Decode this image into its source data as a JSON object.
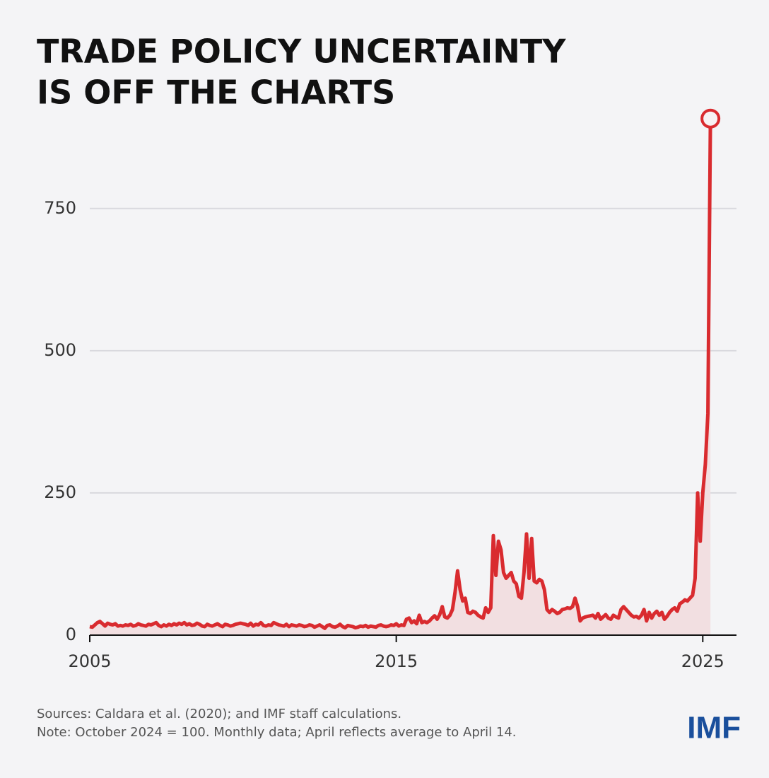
{
  "chart_data": {
    "type": "line",
    "title": [
      "TRADE POLICY UNCERTAINTY",
      "IS OFF THE CHARTS"
    ],
    "sources": "Sources: Caldara et al. (2020); and IMF staff calculations.",
    "note": "Note: October 2024 = 100. Monthly data; April reflects average to April 14.",
    "logo": "IMF",
    "color": "#d92b2f",
    "area_color": "#f2dfe1",
    "grid": true,
    "xlim": [
      2005,
      2026.1
    ],
    "xticks": [
      2005,
      2015,
      2025
    ],
    "ylim": [
      0,
      930
    ],
    "yticks": [
      0,
      250,
      500,
      750
    ],
    "x": [
      2005,
      2005.083,
      2005.167,
      2005.25,
      2005.333,
      2005.417,
      2005.5,
      2005.583,
      2005.667,
      2005.75,
      2005.833,
      2005.917,
      2006,
      2006.083,
      2006.167,
      2006.25,
      2006.333,
      2006.417,
      2006.5,
      2006.583,
      2006.667,
      2006.75,
      2006.833,
      2006.917,
      2007,
      2007.083,
      2007.167,
      2007.25,
      2007.333,
      2007.417,
      2007.5,
      2007.583,
      2007.667,
      2007.75,
      2007.833,
      2007.917,
      2008,
      2008.083,
      2008.167,
      2008.25,
      2008.333,
      2008.417,
      2008.5,
      2008.583,
      2008.667,
      2008.75,
      2008.833,
      2008.917,
      2009,
      2009.083,
      2009.167,
      2009.25,
      2009.333,
      2009.417,
      2009.5,
      2009.583,
      2009.667,
      2009.75,
      2009.833,
      2009.917,
      2010,
      2010.083,
      2010.167,
      2010.25,
      2010.333,
      2010.417,
      2010.5,
      2010.583,
      2010.667,
      2010.75,
      2010.833,
      2010.917,
      2011,
      2011.083,
      2011.167,
      2011.25,
      2011.333,
      2011.417,
      2011.5,
      2011.583,
      2011.667,
      2011.75,
      2011.833,
      2011.917,
      2012,
      2012.083,
      2012.167,
      2012.25,
      2012.333,
      2012.417,
      2012.5,
      2012.583,
      2012.667,
      2012.75,
      2012.833,
      2012.917,
      2013,
      2013.083,
      2013.167,
      2013.25,
      2013.333,
      2013.417,
      2013.5,
      2013.583,
      2013.667,
      2013.75,
      2013.833,
      2013.917,
      2014,
      2014.083,
      2014.167,
      2014.25,
      2014.333,
      2014.417,
      2014.5,
      2014.583,
      2014.667,
      2014.75,
      2014.833,
      2014.917,
      2015,
      2015.083,
      2015.167,
      2015.25,
      2015.333,
      2015.417,
      2015.5,
      2015.583,
      2015.667,
      2015.75,
      2015.833,
      2015.917,
      2016,
      2016.083,
      2016.167,
      2016.25,
      2016.333,
      2016.417,
      2016.5,
      2016.583,
      2016.667,
      2016.75,
      2016.833,
      2016.917,
      2017,
      2017.083,
      2017.167,
      2017.25,
      2017.333,
      2017.417,
      2017.5,
      2017.583,
      2017.667,
      2017.75,
      2017.833,
      2017.917,
      2018,
      2018.083,
      2018.167,
      2018.25,
      2018.333,
      2018.417,
      2018.5,
      2018.583,
      2018.667,
      2018.75,
      2018.833,
      2018.917,
      2019,
      2019.083,
      2019.167,
      2019.25,
      2019.333,
      2019.417,
      2019.5,
      2019.583,
      2019.667,
      2019.75,
      2019.833,
      2019.917,
      2020,
      2020.083,
      2020.167,
      2020.25,
      2020.333,
      2020.417,
      2020.5,
      2020.583,
      2020.667,
      2020.75,
      2020.833,
      2020.917,
      2021,
      2021.083,
      2021.167,
      2021.25,
      2021.333,
      2021.417,
      2021.5,
      2021.583,
      2021.667,
      2021.75,
      2021.833,
      2021.917,
      2022,
      2022.083,
      2022.167,
      2022.25,
      2022.333,
      2022.417,
      2022.5,
      2022.583,
      2022.667,
      2022.75,
      2022.833,
      2022.917,
      2023,
      2023.083,
      2023.167,
      2023.25,
      2023.333,
      2023.417,
      2023.5,
      2023.583,
      2023.667,
      2023.75,
      2023.833,
      2023.917,
      2024,
      2024.083,
      2024.167,
      2024.25,
      2024.333,
      2024.417,
      2024.5,
      2024.583,
      2024.667,
      2024.75,
      2024.833,
      2024.917,
      2025,
      2025.083,
      2025.167,
      2025.25
    ],
    "values": [
      15,
      14,
      18,
      22,
      24,
      20,
      16,
      21,
      19,
      18,
      20,
      16,
      17,
      16,
      18,
      17,
      19,
      16,
      17,
      20,
      18,
      17,
      16,
      19,
      18,
      20,
      22,
      17,
      15,
      18,
      16,
      19,
      17,
      20,
      18,
      21,
      19,
      22,
      18,
      20,
      17,
      18,
      21,
      19,
      16,
      15,
      19,
      17,
      16,
      18,
      20,
      17,
      15,
      19,
      18,
      16,
      17,
      19,
      20,
      21,
      20,
      19,
      17,
      21,
      16,
      19,
      18,
      22,
      17,
      16,
      18,
      17,
      22,
      20,
      18,
      17,
      16,
      19,
      15,
      18,
      17,
      16,
      18,
      17,
      15,
      16,
      18,
      17,
      14,
      16,
      18,
      15,
      12,
      17,
      18,
      15,
      14,
      16,
      19,
      15,
      13,
      17,
      16,
      15,
      13,
      14,
      16,
      15,
      17,
      14,
      16,
      15,
      14,
      17,
      18,
      16,
      15,
      16,
      18,
      17,
      20,
      16,
      18,
      17,
      28,
      30,
      22,
      25,
      20,
      35,
      22,
      24,
      22,
      25,
      30,
      34,
      28,
      36,
      50,
      32,
      30,
      35,
      45,
      75,
      113,
      80,
      60,
      65,
      40,
      38,
      42,
      40,
      35,
      32,
      30,
      48,
      40,
      48,
      175,
      105,
      165,
      150,
      110,
      100,
      105,
      110,
      95,
      90,
      68,
      65,
      110,
      178,
      100,
      170,
      95,
      92,
      98,
      95,
      80,
      45,
      40,
      45,
      42,
      38,
      40,
      45,
      46,
      48,
      47,
      50,
      65,
      50,
      25,
      30,
      32,
      33,
      34,
      35,
      30,
      38,
      28,
      32,
      36,
      30,
      28,
      35,
      32,
      30,
      45,
      50,
      45,
      40,
      35,
      32,
      33,
      30,
      35,
      45,
      25,
      40,
      30,
      38,
      42,
      35,
      40,
      28,
      33,
      40,
      45,
      48,
      42,
      55,
      58,
      62,
      60,
      65,
      70,
      100,
      250,
      165,
      250,
      300,
      390,
      908
    ]
  }
}
